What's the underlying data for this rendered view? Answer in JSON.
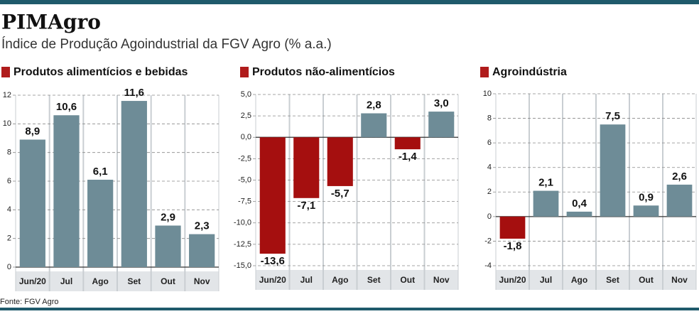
{
  "title": "PIMAgro",
  "subtitle": "Índice de Produção Agoindustrial da FGV Agro (% a.a.)",
  "source": "Fonte: FGV Agro",
  "chart_data": [
    {
      "type": "bar",
      "title": "Produtos alimentícios e bebidas",
      "categories": [
        "Jun/20",
        "Jul",
        "Ago",
        "Set",
        "Out",
        "Nov"
      ],
      "values": [
        8.9,
        10.6,
        6.1,
        11.6,
        2.9,
        2.3
      ],
      "value_labels": [
        "8,9",
        "10,6",
        "6,1",
        "11,6",
        "2,9",
        "2,3"
      ],
      "color": "#6e8c97",
      "negative_color": "#a50f0f",
      "ylim": [
        0,
        12
      ],
      "yticks": [
        0,
        2,
        4,
        6,
        8,
        10,
        12
      ],
      "grid": true
    },
    {
      "type": "bar",
      "title": "Produtos não-alimentícios",
      "categories": [
        "Jun/20",
        "Jul",
        "Ago",
        "Set",
        "Out",
        "Nov"
      ],
      "values": [
        -13.6,
        -7.1,
        -5.7,
        2.8,
        -1.4,
        3.0
      ],
      "value_labels": [
        "-13,6",
        "-7,1",
        "-5,7",
        "2,8",
        "-1,4",
        "3,0"
      ],
      "color": "#6e8c97",
      "negative_color": "#a50f0f",
      "ylim": [
        -15,
        5
      ],
      "yticks": [
        {
          "value": -15,
          "label": "-15,0"
        },
        {
          "value": -12.5,
          "label": "-12,5"
        },
        {
          "value": -10,
          "label": "-10,0"
        },
        {
          "value": -7.5,
          "label": "-7,5"
        },
        {
          "value": -5,
          "label": "-5,0"
        },
        {
          "value": -2.5,
          "label": "-2,5"
        },
        {
          "value": 0,
          "label": "0,0"
        },
        {
          "value": 2.5,
          "label": "2,5"
        },
        {
          "value": 5,
          "label": "5,0"
        }
      ],
      "grid": true
    },
    {
      "type": "bar",
      "title": "Agroindústria",
      "categories": [
        "Jun/20",
        "Jul",
        "Ago",
        "Set",
        "Out",
        "Nov"
      ],
      "values": [
        -1.8,
        2.1,
        0.4,
        7.5,
        0.9,
        2.6
      ],
      "value_labels": [
        "-1,8",
        "2,1",
        "0,4",
        "7,5",
        "0,9",
        "2,6"
      ],
      "color": "#6e8c97",
      "negative_color": "#a50f0f",
      "ylim": [
        -4,
        10
      ],
      "yticks": [
        -4,
        -2,
        0,
        2,
        4,
        6,
        8,
        10
      ],
      "grid": true
    }
  ]
}
